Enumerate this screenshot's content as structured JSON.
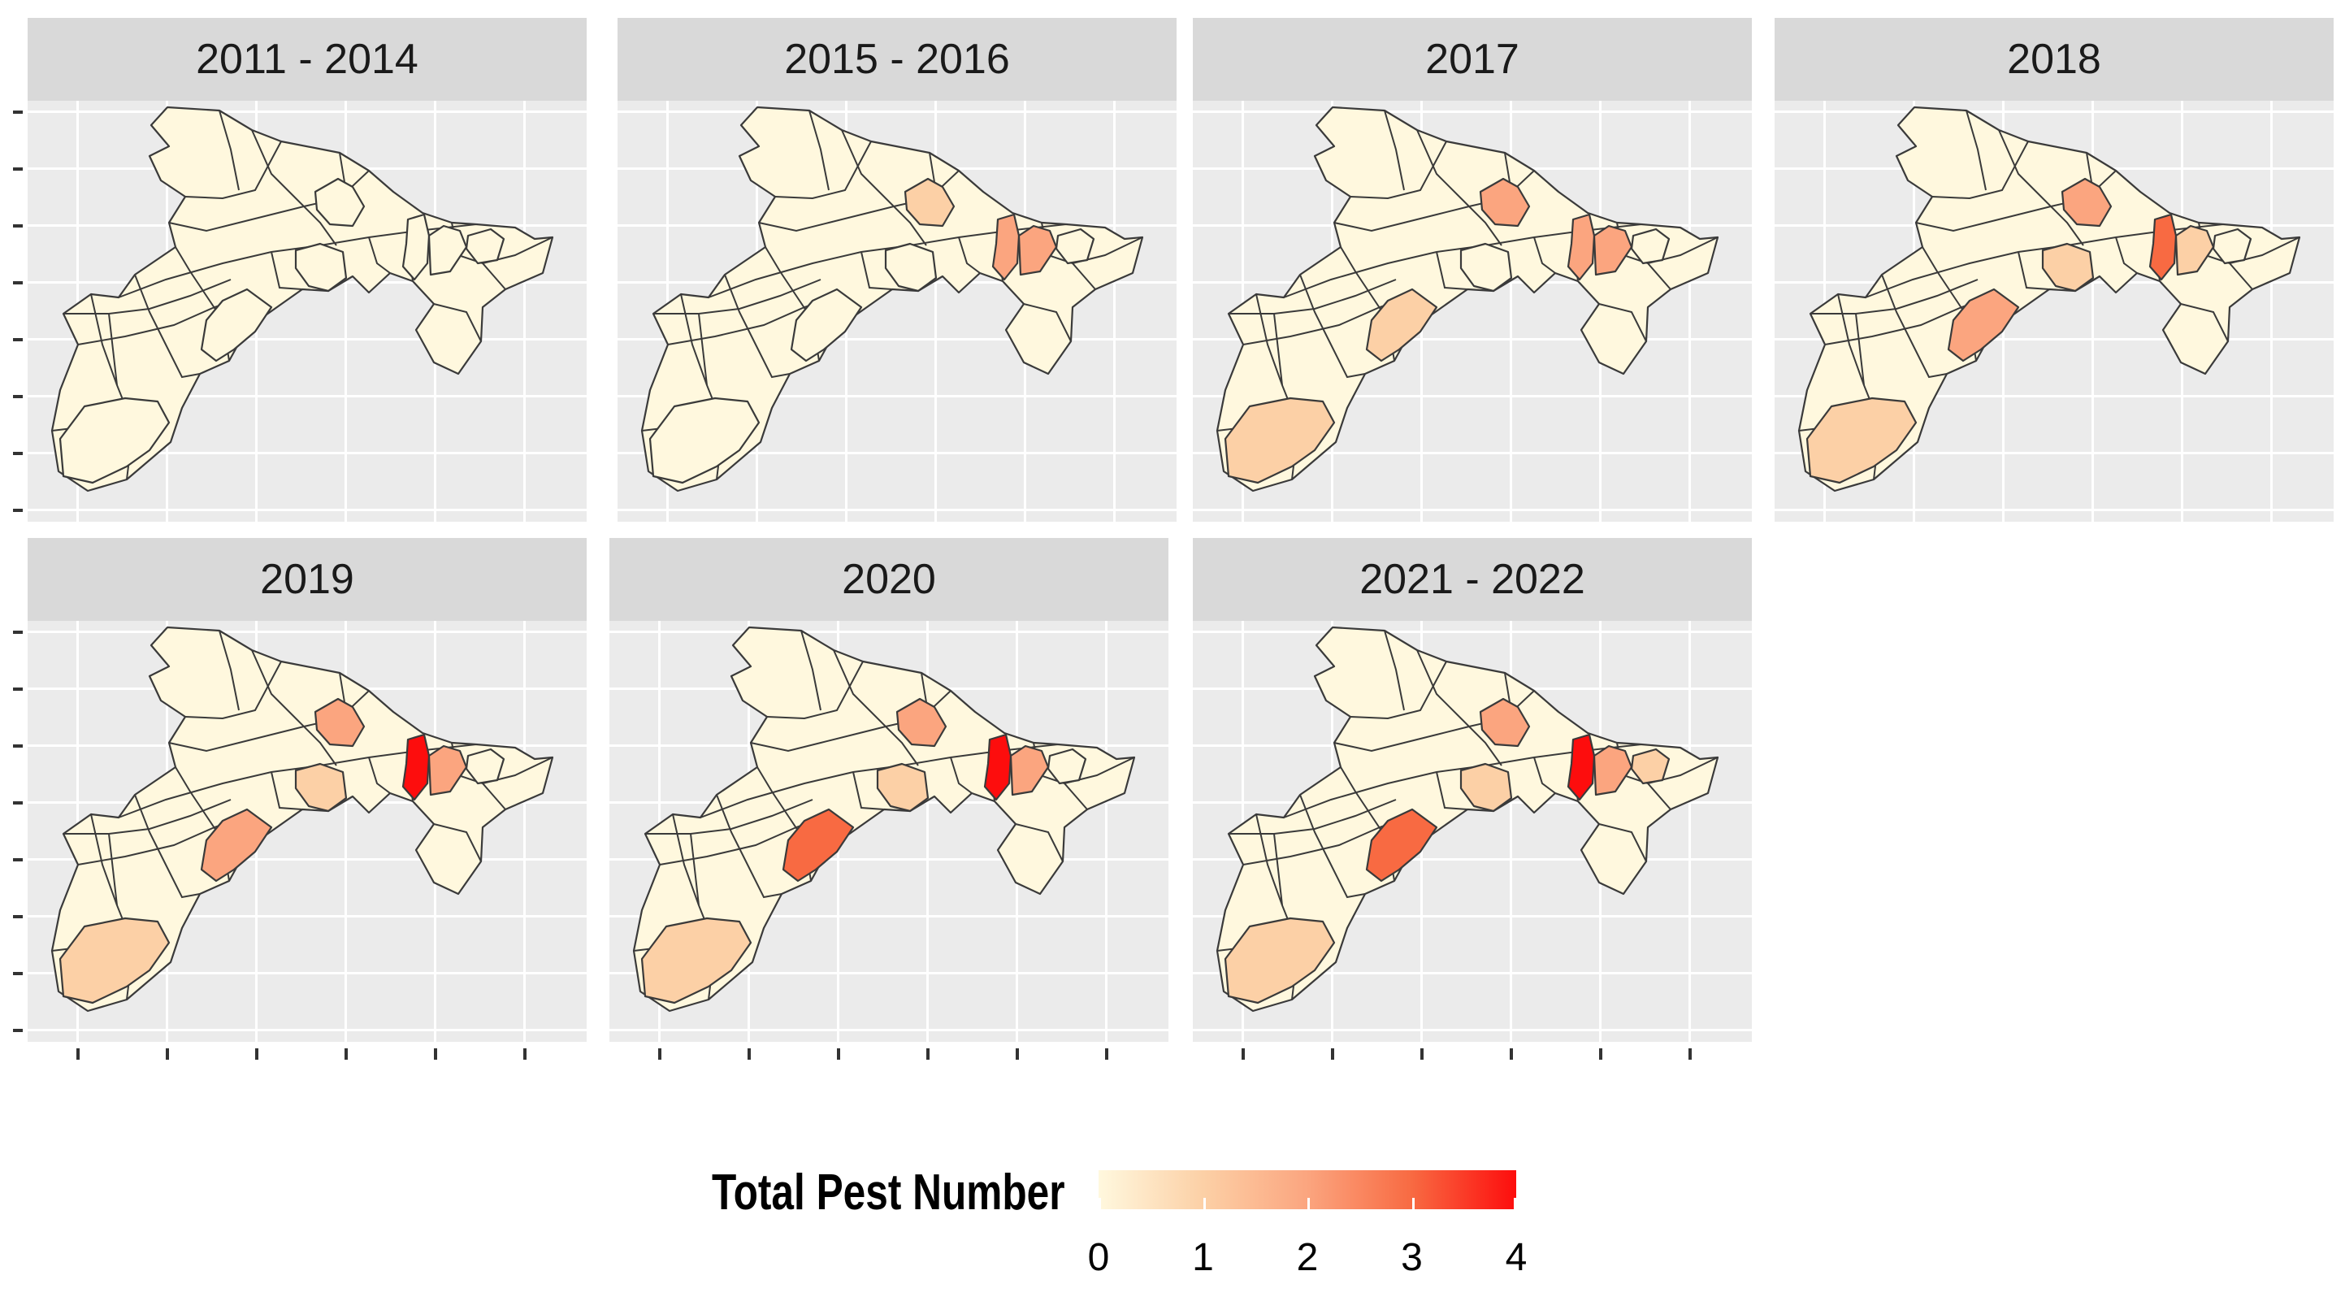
{
  "figure": {
    "panels": [
      {
        "title": "2011 - 2014",
        "counts": {
          "r_sw": 0,
          "r_south": 0,
          "r_mid": 0,
          "r_north": 0,
          "r_east_a": 0,
          "r_east_b": 0,
          "r_east_c": 0
        }
      },
      {
        "title": "2015 - 2016",
        "counts": {
          "r_sw": 0,
          "r_south": 0,
          "r_mid": 0,
          "r_north": 1,
          "r_east_a": 2,
          "r_east_b": 2,
          "r_east_c": 0
        }
      },
      {
        "title": "2017",
        "counts": {
          "r_sw": 1,
          "r_south": 1,
          "r_mid": 0,
          "r_north": 2,
          "r_east_a": 2,
          "r_east_b": 2,
          "r_east_c": 0
        }
      },
      {
        "title": "2018",
        "counts": {
          "r_sw": 1,
          "r_south": 2,
          "r_mid": 1,
          "r_north": 2,
          "r_east_a": 3,
          "r_east_b": 1,
          "r_east_c": 0
        }
      },
      {
        "title": "2019",
        "counts": {
          "r_sw": 1,
          "r_south": 2,
          "r_mid": 1,
          "r_north": 2,
          "r_east_a": 4,
          "r_east_b": 2,
          "r_east_c": 0
        }
      },
      {
        "title": "2020",
        "counts": {
          "r_sw": 1,
          "r_south": 3,
          "r_mid": 1,
          "r_north": 2,
          "r_east_a": 4,
          "r_east_b": 2,
          "r_east_c": 0
        }
      },
      {
        "title": "2021 - 2022",
        "counts": {
          "r_sw": 1,
          "r_south": 3,
          "r_mid": 1,
          "r_north": 2,
          "r_east_a": 4,
          "r_east_b": 2,
          "r_east_c": 1
        }
      }
    ],
    "legend": {
      "title": "Total Pest Number",
      "min": 0,
      "max": 4,
      "ticks": [
        "0",
        "1",
        "2",
        "3",
        "4"
      ],
      "color_low": "#fff8de",
      "color_high": "#fd0d0d"
    },
    "colors": {
      "panel_background": "#ebebeb",
      "strip_background": "#d9d9d9",
      "gridline": "#ffffff",
      "region_border": "#3a3a3a"
    }
  }
}
